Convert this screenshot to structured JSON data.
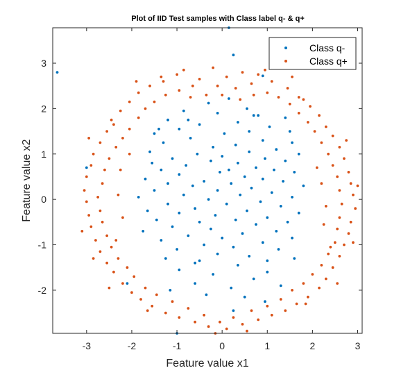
{
  "chart_data": {
    "type": "scatter",
    "title": "Plot of IID Test samples with Class label q- & q+",
    "xlabel": "Feature value x1",
    "ylabel": "Feature value x2",
    "xlim": [
      -3.75,
      3.1
    ],
    "ylim": [
      -2.95,
      3.78
    ],
    "xticks": [
      -3,
      -2,
      -1,
      0,
      1,
      2,
      3
    ],
    "yticks": [
      -2,
      -1,
      0,
      1,
      2,
      3
    ],
    "xtick_labels": [
      "-3",
      "-2",
      "-1",
      "0",
      "1",
      "2",
      "3"
    ],
    "ytick_labels": [
      "-2",
      "-1",
      "0",
      "1",
      "2",
      "3"
    ],
    "grid": false,
    "legend_position": "top-right",
    "colors": {
      "q_minus": "#0072BD",
      "q_plus": "#D95319"
    },
    "series": [
      {
        "name": "Class q-",
        "color": "#0072BD",
        "points": [
          [
            -3.65,
            2.8
          ],
          [
            0.15,
            3.78
          ],
          [
            0.25,
            3.18
          ],
          [
            0.9,
            2.72
          ],
          [
            -0.3,
            2.12
          ],
          [
            0.15,
            2.22
          ],
          [
            0.55,
            2.0
          ],
          [
            -0.85,
            1.95
          ],
          [
            -0.1,
            1.9
          ],
          [
            0.8,
            1.85
          ],
          [
            1.4,
            1.8
          ],
          [
            -1.2,
            1.75
          ],
          [
            0.35,
            1.7
          ],
          [
            -0.5,
            1.65
          ],
          [
            1.05,
            1.6
          ],
          [
            -0.95,
            1.55
          ],
          [
            0.6,
            1.5
          ],
          [
            -1.5,
            1.45
          ],
          [
            1.5,
            1.5
          ],
          [
            0.05,
            1.45
          ],
          [
            -0.7,
            1.35
          ],
          [
            0.9,
            1.3
          ],
          [
            -1.3,
            1.25
          ],
          [
            1.55,
            1.25
          ],
          [
            0.3,
            1.2
          ],
          [
            -0.2,
            1.15
          ],
          [
            1.2,
            1.1
          ],
          [
            -1.6,
            1.05
          ],
          [
            0.6,
            1.05
          ],
          [
            -0.55,
            1.0
          ],
          [
            1.7,
            1.0
          ],
          [
            0.0,
            0.95
          ],
          [
            -1.1,
            0.9
          ],
          [
            0.95,
            0.9
          ],
          [
            -0.25,
            0.85
          ],
          [
            1.4,
            0.85
          ],
          [
            -1.55,
            0.8
          ],
          [
            0.35,
            0.8
          ],
          [
            -0.8,
            0.75
          ],
          [
            0.75,
            0.7
          ],
          [
            -1.35,
            0.65
          ],
          [
            1.15,
            0.65
          ],
          [
            -3.0,
            0.7
          ],
          [
            -0.05,
            0.6
          ],
          [
            1.6,
            0.6
          ],
          [
            -0.95,
            0.55
          ],
          [
            0.5,
            0.5
          ],
          [
            -1.7,
            0.45
          ],
          [
            0.9,
            0.45
          ],
          [
            -0.4,
            0.4
          ],
          [
            1.35,
            0.4
          ],
          [
            -1.2,
            0.35
          ],
          [
            0.2,
            0.35
          ],
          [
            -0.65,
            0.3
          ],
          [
            1.8,
            0.3
          ],
          [
            0.65,
            0.25
          ],
          [
            -1.5,
            0.2
          ],
          [
            -0.1,
            0.2
          ],
          [
            1.1,
            0.15
          ],
          [
            -0.85,
            0.1
          ],
          [
            0.4,
            0.1
          ],
          [
            -1.85,
            0.05
          ],
          [
            1.55,
            0.05
          ],
          [
            -0.3,
            0.0
          ],
          [
            0.85,
            -0.05
          ],
          [
            -1.2,
            -0.1
          ],
          [
            0.1,
            -0.1
          ],
          [
            1.3,
            -0.15
          ],
          [
            -0.6,
            -0.2
          ],
          [
            -1.65,
            -0.25
          ],
          [
            0.55,
            -0.25
          ],
          [
            1.7,
            -0.3
          ],
          [
            -0.95,
            -0.3
          ],
          [
            -0.15,
            -0.35
          ],
          [
            1.0,
            -0.4
          ],
          [
            -1.45,
            -0.45
          ],
          [
            0.3,
            -0.45
          ],
          [
            -0.5,
            -0.5
          ],
          [
            1.45,
            -0.5
          ],
          [
            0.75,
            -0.55
          ],
          [
            -1.1,
            -0.6
          ],
          [
            -0.25,
            -0.65
          ],
          [
            1.2,
            -0.7
          ],
          [
            -1.75,
            -0.7
          ],
          [
            0.45,
            -0.75
          ],
          [
            -0.75,
            -0.8
          ],
          [
            0.0,
            -0.85
          ],
          [
            1.55,
            -0.85
          ],
          [
            -1.35,
            -0.9
          ],
          [
            0.9,
            -0.95
          ],
          [
            -0.4,
            -1.0
          ],
          [
            0.25,
            -1.05
          ],
          [
            -1.0,
            -1.1
          ],
          [
            1.25,
            -1.1
          ],
          [
            -0.1,
            -1.2
          ],
          [
            0.6,
            -1.25
          ],
          [
            -1.25,
            -1.3
          ],
          [
            1.6,
            -1.3
          ],
          [
            -0.6,
            -1.4
          ],
          [
            0.35,
            -1.45
          ],
          [
            -0.95,
            -1.55
          ],
          [
            1.0,
            -1.6
          ],
          [
            -0.2,
            -1.65
          ],
          [
            0.7,
            -1.75
          ],
          [
            -2.1,
            -1.85
          ],
          [
            -0.6,
            -1.85
          ],
          [
            1.3,
            -1.9
          ],
          [
            0.2,
            -1.95
          ],
          [
            -1.15,
            -2.0
          ],
          [
            0.5,
            -2.15
          ],
          [
            -0.35,
            -2.1
          ],
          [
            0.95,
            -2.25
          ],
          [
            -1.0,
            -2.95
          ],
          [
            0.25,
            -2.45
          ],
          [
            -0.5,
            -1.35
          ],
          [
            0.15,
            0.65
          ],
          [
            -0.75,
            1.75
          ],
          [
            1.0,
            -1.35
          ],
          [
            -1.4,
            1.55
          ],
          [
            0.7,
            1.85
          ]
        ]
      },
      {
        "name": "Class q+",
        "color": "#D95319",
        "points": [
          [
            -1.0,
            2.75
          ],
          [
            -0.85,
            2.85
          ],
          [
            -0.5,
            2.65
          ],
          [
            -0.2,
            2.9
          ],
          [
            0.1,
            2.7
          ],
          [
            0.45,
            2.8
          ],
          [
            0.8,
            2.75
          ],
          [
            1.1,
            2.6
          ],
          [
            -1.3,
            2.6
          ],
          [
            -1.6,
            2.5
          ],
          [
            0.65,
            2.55
          ],
          [
            -0.65,
            2.5
          ],
          [
            1.45,
            2.45
          ],
          [
            -1.85,
            2.35
          ],
          [
            0.3,
            2.45
          ],
          [
            -0.1,
            2.5
          ],
          [
            1.7,
            2.25
          ],
          [
            -2.05,
            2.15
          ],
          [
            1.95,
            2.05
          ],
          [
            -2.25,
            1.95
          ],
          [
            2.15,
            1.85
          ],
          [
            -2.45,
            1.75
          ],
          [
            2.3,
            1.6
          ],
          [
            -2.55,
            1.5
          ],
          [
            2.45,
            1.4
          ],
          [
            -2.7,
            1.25
          ],
          [
            2.6,
            1.15
          ],
          [
            -2.85,
            1.0
          ],
          [
            2.7,
            0.9
          ],
          [
            -2.9,
            0.75
          ],
          [
            2.8,
            0.6
          ],
          [
            -3.0,
            0.5
          ],
          [
            2.85,
            0.35
          ],
          [
            -3.05,
            0.2
          ],
          [
            2.9,
            0.1
          ],
          [
            -3.0,
            -0.05
          ],
          [
            2.95,
            -0.2
          ],
          [
            -2.95,
            -0.35
          ],
          [
            2.85,
            -0.5
          ],
          [
            -2.9,
            -0.6
          ],
          [
            2.8,
            -0.75
          ],
          [
            -2.8,
            -0.9
          ],
          [
            2.7,
            -1.0
          ],
          [
            -2.7,
            -1.15
          ],
          [
            2.6,
            -1.25
          ],
          [
            -2.55,
            -1.4
          ],
          [
            2.45,
            -1.5
          ],
          [
            -2.4,
            -1.6
          ],
          [
            2.3,
            -1.75
          ],
          [
            -2.2,
            -1.85
          ],
          [
            2.15,
            -1.95
          ],
          [
            -2.0,
            -2.05
          ],
          [
            1.9,
            -2.15
          ],
          [
            -1.8,
            -2.2
          ],
          [
            1.65,
            -2.3
          ],
          [
            -1.55,
            -2.35
          ],
          [
            1.4,
            -2.45
          ],
          [
            -1.25,
            -2.5
          ],
          [
            1.1,
            -2.55
          ],
          [
            -0.95,
            -2.6
          ],
          [
            0.8,
            -2.65
          ],
          [
            -0.6,
            -2.7
          ],
          [
            0.45,
            -2.75
          ],
          [
            -0.3,
            -2.8
          ],
          [
            0.1,
            -2.85
          ],
          [
            -0.05,
            -2.7
          ],
          [
            0.65,
            -2.45
          ],
          [
            -0.75,
            -2.4
          ],
          [
            1.0,
            -2.35
          ],
          [
            -1.1,
            -2.25
          ],
          [
            1.3,
            -2.2
          ],
          [
            -1.45,
            -2.1
          ],
          [
            1.55,
            -2.0
          ],
          [
            -1.7,
            -1.95
          ],
          [
            1.8,
            -1.85
          ],
          [
            -1.95,
            -1.7
          ],
          [
            2.0,
            -1.65
          ],
          [
            -2.1,
            -1.5
          ],
          [
            2.2,
            -1.45
          ],
          [
            -2.3,
            -1.3
          ],
          [
            2.35,
            -1.2
          ],
          [
            -2.45,
            -1.05
          ],
          [
            2.5,
            -0.95
          ],
          [
            -2.55,
            -0.8
          ],
          [
            2.55,
            -0.65
          ],
          [
            -2.65,
            -0.5
          ],
          [
            2.6,
            -0.4
          ],
          [
            -2.7,
            -0.25
          ],
          [
            2.65,
            -0.1
          ],
          [
            -2.75,
            0.05
          ],
          [
            2.6,
            0.2
          ],
          [
            -2.65,
            0.35
          ],
          [
            2.55,
            0.5
          ],
          [
            -2.6,
            0.65
          ],
          [
            2.45,
            0.75
          ],
          [
            -2.5,
            0.9
          ],
          [
            2.35,
            1.0
          ],
          [
            -2.35,
            1.15
          ],
          [
            2.2,
            1.25
          ],
          [
            -2.2,
            1.35
          ],
          [
            2.05,
            1.5
          ],
          [
            -2.05,
            1.55
          ],
          [
            1.9,
            1.7
          ],
          [
            -1.85,
            1.8
          ],
          [
            1.7,
            1.9
          ],
          [
            -1.7,
            2.0
          ],
          [
            1.5,
            2.1
          ],
          [
            -1.5,
            2.15
          ],
          [
            1.25,
            2.25
          ],
          [
            -1.25,
            2.3
          ],
          [
            1.0,
            2.35
          ],
          [
            -0.95,
            2.4
          ],
          [
            0.7,
            2.3
          ],
          [
            -0.7,
            2.25
          ],
          [
            0.4,
            2.2
          ],
          [
            -0.35,
            2.3
          ],
          [
            0.0,
            2.3
          ],
          [
            -2.3,
            0.1
          ],
          [
            2.3,
            -0.15
          ],
          [
            -2.2,
            -0.4
          ],
          [
            2.2,
            0.35
          ],
          [
            -2.25,
            0.65
          ],
          [
            2.25,
            -0.55
          ],
          [
            -2.35,
            -0.9
          ],
          [
            2.1,
            0.7
          ],
          [
            -2.05,
            1.0
          ],
          [
            2.4,
            -1.05
          ],
          [
            -2.4,
            1.65
          ],
          [
            1.8,
            2.2
          ],
          [
            -1.65,
            -2.45
          ],
          [
            1.85,
            -2.3
          ],
          [
            -0.4,
            -2.55
          ],
          [
            0.25,
            -2.6
          ],
          [
            -1.35,
            2.7
          ],
          [
            0.95,
            2.85
          ],
          [
            -2.95,
            1.35
          ],
          [
            2.9,
            -0.95
          ],
          [
            -2.85,
            -1.3
          ],
          [
            2.75,
            1.3
          ],
          [
            -3.1,
            -0.7
          ],
          [
            3.0,
            0.3
          ],
          [
            -1.9,
            2.6
          ],
          [
            1.55,
            2.7
          ],
          [
            -2.5,
            -1.95
          ],
          [
            2.55,
            -1.85
          ],
          [
            -0.15,
            -2.95
          ],
          [
            0.55,
            -2.9
          ]
        ]
      }
    ]
  }
}
